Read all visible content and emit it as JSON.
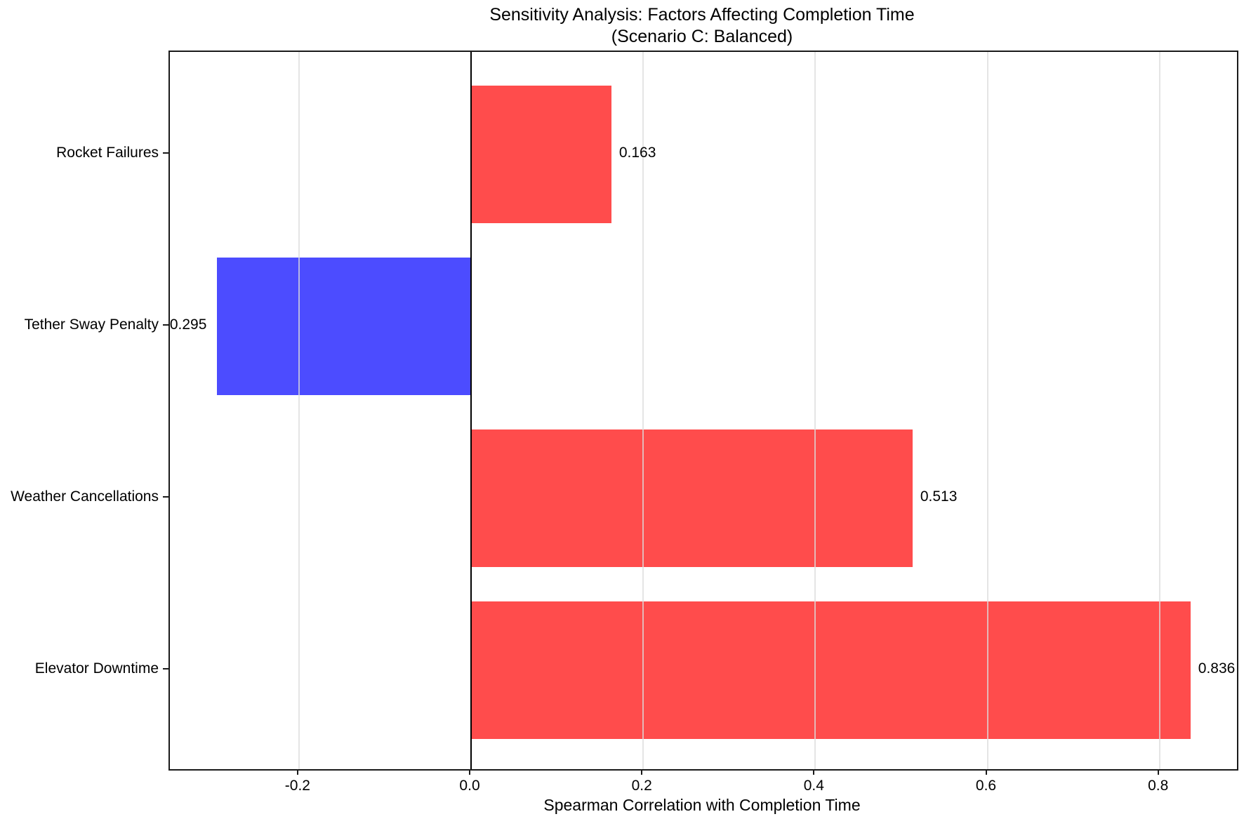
{
  "title": {
    "line1": "Sensitivity Analysis: Factors Affecting Completion Time",
    "line2": "(Scenario C: Balanced)"
  },
  "chart_data": {
    "type": "bar",
    "orientation": "horizontal",
    "title": "Sensitivity Analysis: Factors Affecting Completion Time",
    "subtitle": "(Scenario C: Balanced)",
    "xlabel": "Spearman Correlation with Completion Time",
    "categories_top_to_bottom": [
      "Rocket Failures",
      "Tether Sway Penalty",
      "Weather Cancellations",
      "Elevator Downtime"
    ],
    "values": [
      0.163,
      -0.295,
      0.513,
      0.836
    ],
    "value_labels": [
      "0.163",
      "-0.295",
      "0.513",
      "0.836"
    ],
    "x_ticks": [
      -0.2,
      0.0,
      0.2,
      0.4,
      0.6,
      0.8
    ],
    "x_tick_labels": [
      "-0.2",
      "0.0",
      "0.2",
      "0.4",
      "0.6",
      "0.8"
    ],
    "xlim": [
      -0.35,
      0.89
    ],
    "grid": true,
    "legend": false,
    "zero_line": true,
    "colors": {
      "positive_bar": "#FF0000",
      "negative_bar": "#0000FF",
      "bar_alpha": 0.7,
      "grid": "#DCDCDC",
      "grid_alpha": 0.75,
      "spine": "#1A1A1A",
      "zero_line": "#000000",
      "text": "#000000"
    }
  }
}
